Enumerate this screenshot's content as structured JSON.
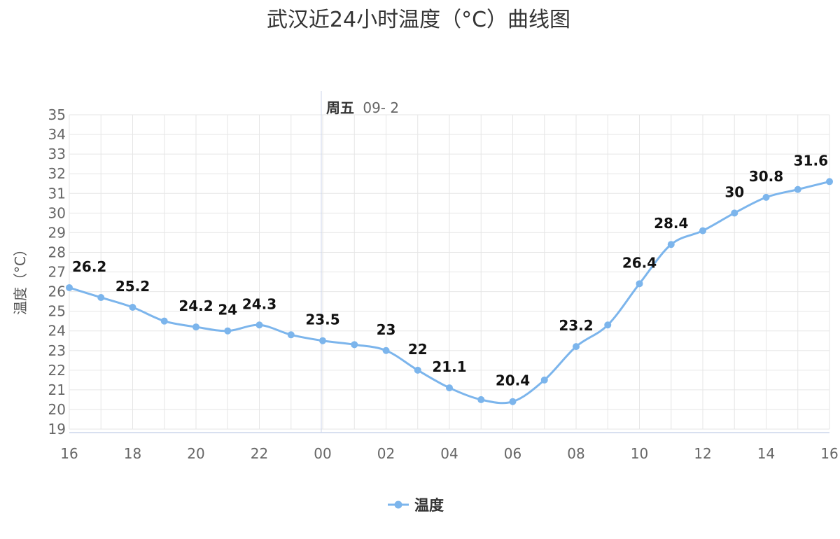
{
  "chart_data": {
    "type": "line",
    "title": "武汉近24小时温度（°C）曲线图",
    "ylabel": "温度（°C）",
    "xlabel": "",
    "day_label": {
      "weekday": "周五",
      "date": "09- 2"
    },
    "x": [
      "16",
      "17",
      "18",
      "19",
      "20",
      "21",
      "22",
      "23",
      "00",
      "01",
      "02",
      "03",
      "04",
      "05",
      "06",
      "07",
      "08",
      "09",
      "10",
      "11",
      "12",
      "13",
      "14",
      "15",
      "16"
    ],
    "x_tick_labels": [
      "16",
      "18",
      "20",
      "22",
      "00",
      "02",
      "04",
      "06",
      "08",
      "10",
      "12",
      "14",
      "16"
    ],
    "ylim": [
      19,
      35
    ],
    "y_ticks": [
      19,
      20,
      21,
      22,
      23,
      24,
      25,
      26,
      27,
      28,
      29,
      30,
      31,
      32,
      33,
      34,
      35
    ],
    "grid": true,
    "legend_position": "bottom-center",
    "colors": {
      "series": "#7cb5ec",
      "grid": "#e6e6e6",
      "axis": "#ccd6eb"
    },
    "series": [
      {
        "name": "温度",
        "values": [
          26.2,
          25.7,
          25.2,
          24.5,
          24.2,
          24.0,
          24.3,
          23.8,
          23.5,
          23.3,
          23.0,
          22.0,
          21.1,
          20.5,
          20.4,
          21.5,
          23.2,
          24.3,
          26.4,
          28.4,
          29.1,
          30.0,
          30.8,
          31.2,
          31.6
        ],
        "data_labels": [
          {
            "index": 0,
            "text": "26.2"
          },
          {
            "index": 2,
            "text": "25.2"
          },
          {
            "index": 4,
            "text": "24.2"
          },
          {
            "index": 5,
            "text": "24"
          },
          {
            "index": 6,
            "text": "24.3"
          },
          {
            "index": 8,
            "text": "23.5"
          },
          {
            "index": 10,
            "text": "23"
          },
          {
            "index": 11,
            "text": "22"
          },
          {
            "index": 12,
            "text": "21.1"
          },
          {
            "index": 14,
            "text": "20.4"
          },
          {
            "index": 16,
            "text": "23.2"
          },
          {
            "index": 18,
            "text": "26.4"
          },
          {
            "index": 19,
            "text": "28.4"
          },
          {
            "index": 21,
            "text": "30"
          },
          {
            "index": 22,
            "text": "30.8"
          },
          {
            "index": 24,
            "text": "31.6"
          }
        ]
      }
    ]
  }
}
